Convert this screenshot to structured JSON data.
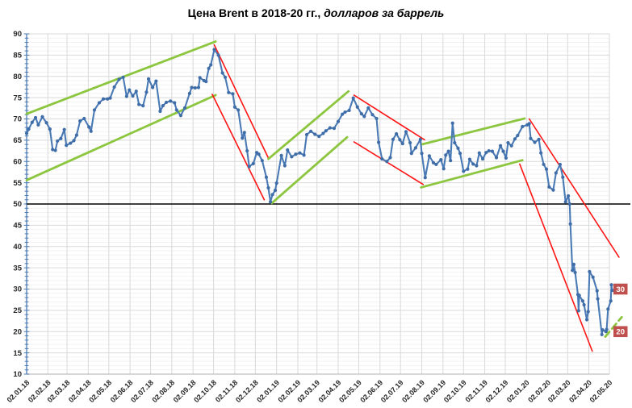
{
  "title": {
    "main": "Цена Brent в 2018-20 гг.,",
    "suffix": " долларов за баррель"
  },
  "chart_data": {
    "type": "line",
    "title": "Цена Brent в 2018-20 гг., долларов за баррель",
    "xlabel": "",
    "ylabel": "",
    "legend": "none",
    "grid": "on",
    "y_axis": {
      "min": 10,
      "max": 90,
      "step": 5,
      "minor_step": 1
    },
    "x_axis": {
      "tick_labels": [
        "02.01.18",
        "02.02.18",
        "02.03.18",
        "02.04.18",
        "02.05.18",
        "02.06.18",
        "02.07.18",
        "02.08.18",
        "02.09.18",
        "02.10.18",
        "02.11.18",
        "02.12.18",
        "02.01.19",
        "02.02.19",
        "02.03.19",
        "02.04.19",
        "02.05.19",
        "02.06.19",
        "02.07.19",
        "02.08.19",
        "02.09.19",
        "02.10.19",
        "02.11.19",
        "02.12.19",
        "02.01.20",
        "02.02.20",
        "02.03.20",
        "02.04.20",
        "02.05.20"
      ]
    },
    "reference_line": {
      "value": 50,
      "color": "#000000"
    },
    "colors": {
      "series": "#4a7ab5",
      "marker": "#3f6da8",
      "green": "#8cc63f",
      "red": "#ff1414",
      "grid_major": "#d9d9d9",
      "grid_minor": "#f2f2f2",
      "axis_x": "#bfbfbf",
      "axis_y": "#4a7ab5",
      "label_bg": "#c0504d",
      "label_fg": "#ffffff",
      "tick_text": "#262626"
    },
    "series": [
      {
        "name": "Brent, долларов за баррель",
        "points": [
          [
            "2018-01-02",
            66.6
          ],
          [
            "2018-01-05",
            67.6
          ],
          [
            "2018-01-10",
            69.2
          ],
          [
            "2018-01-15",
            70.3
          ],
          [
            "2018-01-19",
            68.6
          ],
          [
            "2018-01-25",
            70.5
          ],
          [
            "2018-01-31",
            69.1
          ],
          [
            "2018-02-05",
            67.6
          ],
          [
            "2018-02-09",
            62.8
          ],
          [
            "2018-02-13",
            62.6
          ],
          [
            "2018-02-16",
            64.8
          ],
          [
            "2018-02-21",
            65.4
          ],
          [
            "2018-02-26",
            67.5
          ],
          [
            "2018-03-01",
            63.8
          ],
          [
            "2018-03-07",
            64.3
          ],
          [
            "2018-03-12",
            64.9
          ],
          [
            "2018-03-16",
            66.2
          ],
          [
            "2018-03-21",
            69.5
          ],
          [
            "2018-03-27",
            70.1
          ],
          [
            "2018-04-03",
            68.1
          ],
          [
            "2018-04-06",
            67.1
          ],
          [
            "2018-04-11",
            72.1
          ],
          [
            "2018-04-18",
            73.8
          ],
          [
            "2018-04-24",
            74.7
          ],
          [
            "2018-04-30",
            74.7
          ],
          [
            "2018-05-04",
            74.9
          ],
          [
            "2018-05-10",
            77.5
          ],
          [
            "2018-05-17",
            79.3
          ],
          [
            "2018-05-23",
            79.8
          ],
          [
            "2018-05-28",
            75.3
          ],
          [
            "2018-06-01",
            76.8
          ],
          [
            "2018-06-06",
            75.4
          ],
          [
            "2018-06-11",
            76.5
          ],
          [
            "2018-06-15",
            73.4
          ],
          [
            "2018-06-21",
            73.1
          ],
          [
            "2018-06-26",
            76.3
          ],
          [
            "2018-06-29",
            79.4
          ],
          [
            "2018-07-05",
            77.4
          ],
          [
            "2018-07-10",
            78.9
          ],
          [
            "2018-07-16",
            71.8
          ],
          [
            "2018-07-20",
            73.1
          ],
          [
            "2018-07-25",
            73.9
          ],
          [
            "2018-07-31",
            74.2
          ],
          [
            "2018-08-06",
            73.8
          ],
          [
            "2018-08-09",
            72.1
          ],
          [
            "2018-08-15",
            70.8
          ],
          [
            "2018-08-21",
            72.6
          ],
          [
            "2018-08-28",
            76.0
          ],
          [
            "2018-08-31",
            77.4
          ],
          [
            "2018-09-05",
            77.3
          ],
          [
            "2018-09-10",
            77.4
          ],
          [
            "2018-09-12",
            79.7
          ],
          [
            "2018-09-18",
            79.0
          ],
          [
            "2018-09-21",
            78.8
          ],
          [
            "2018-09-25",
            81.9
          ],
          [
            "2018-09-28",
            82.7
          ],
          [
            "2018-10-03",
            86.3
          ],
          [
            "2018-10-09",
            85.0
          ],
          [
            "2018-10-15",
            80.8
          ],
          [
            "2018-10-19",
            79.8
          ],
          [
            "2018-10-24",
            76.2
          ],
          [
            "2018-10-30",
            75.9
          ],
          [
            "2018-11-02",
            72.8
          ],
          [
            "2018-11-07",
            72.1
          ],
          [
            "2018-11-13",
            65.5
          ],
          [
            "2018-11-16",
            66.8
          ],
          [
            "2018-11-20",
            62.5
          ],
          [
            "2018-11-23",
            58.8
          ],
          [
            "2018-11-29",
            59.5
          ],
          [
            "2018-12-04",
            62.1
          ],
          [
            "2018-12-07",
            61.7
          ],
          [
            "2018-12-12",
            60.2
          ],
          [
            "2018-12-18",
            56.3
          ],
          [
            "2018-12-21",
            53.8
          ],
          [
            "2018-12-24",
            50.5
          ],
          [
            "2018-12-27",
            52.2
          ],
          [
            "2018-12-31",
            53.2
          ],
          [
            "2019-01-02",
            54.9
          ],
          [
            "2019-01-09",
            61.4
          ],
          [
            "2019-01-14",
            59.0
          ],
          [
            "2019-01-18",
            62.7
          ],
          [
            "2019-01-24",
            61.1
          ],
          [
            "2019-01-30",
            61.7
          ],
          [
            "2019-02-05",
            62.0
          ],
          [
            "2019-02-11",
            61.5
          ],
          [
            "2019-02-15",
            66.3
          ],
          [
            "2019-02-21",
            67.1
          ],
          [
            "2019-02-27",
            66.4
          ],
          [
            "2019-03-05",
            65.9
          ],
          [
            "2019-03-11",
            66.6
          ],
          [
            "2019-03-15",
            67.2
          ],
          [
            "2019-03-21",
            67.9
          ],
          [
            "2019-03-27",
            67.8
          ],
          [
            "2019-04-02",
            69.4
          ],
          [
            "2019-04-08",
            71.1
          ],
          [
            "2019-04-12",
            71.6
          ],
          [
            "2019-04-18",
            72.0
          ],
          [
            "2019-04-24",
            74.9
          ],
          [
            "2019-04-30",
            72.8
          ],
          [
            "2019-05-06",
            71.2
          ],
          [
            "2019-05-10",
            70.6
          ],
          [
            "2019-05-16",
            72.6
          ],
          [
            "2019-05-22",
            71.0
          ],
          [
            "2019-05-28",
            70.1
          ],
          [
            "2019-05-31",
            64.5
          ],
          [
            "2019-06-05",
            60.6
          ],
          [
            "2019-06-12",
            60.0
          ],
          [
            "2019-06-17",
            60.9
          ],
          [
            "2019-06-21",
            65.2
          ],
          [
            "2019-06-26",
            66.5
          ],
          [
            "2019-07-01",
            65.1
          ],
          [
            "2019-07-05",
            64.2
          ],
          [
            "2019-07-10",
            67.0
          ],
          [
            "2019-07-16",
            64.4
          ],
          [
            "2019-07-18",
            61.9
          ],
          [
            "2019-07-24",
            63.2
          ],
          [
            "2019-07-31",
            65.2
          ],
          [
            "2019-08-02",
            61.9
          ],
          [
            "2019-08-07",
            56.2
          ],
          [
            "2019-08-13",
            61.3
          ],
          [
            "2019-08-19",
            59.7
          ],
          [
            "2019-08-23",
            59.3
          ],
          [
            "2019-08-30",
            60.4
          ],
          [
            "2019-09-03",
            58.3
          ],
          [
            "2019-09-06",
            61.5
          ],
          [
            "2019-09-10",
            62.4
          ],
          [
            "2019-09-13",
            60.2
          ],
          [
            "2019-09-16",
            69.0
          ],
          [
            "2019-09-19",
            64.4
          ],
          [
            "2019-09-24",
            63.1
          ],
          [
            "2019-09-27",
            61.9
          ],
          [
            "2019-10-02",
            57.7
          ],
          [
            "2019-10-08",
            58.2
          ],
          [
            "2019-10-11",
            60.5
          ],
          [
            "2019-10-16",
            59.4
          ],
          [
            "2019-10-21",
            59.0
          ],
          [
            "2019-10-25",
            62.0
          ],
          [
            "2019-10-30",
            60.6
          ],
          [
            "2019-11-04",
            62.1
          ],
          [
            "2019-11-08",
            62.5
          ],
          [
            "2019-11-13",
            62.4
          ],
          [
            "2019-11-19",
            60.9
          ],
          [
            "2019-11-25",
            63.7
          ],
          [
            "2019-11-29",
            62.4
          ],
          [
            "2019-12-03",
            60.8
          ],
          [
            "2019-12-06",
            64.4
          ],
          [
            "2019-12-11",
            63.7
          ],
          [
            "2019-12-16",
            65.3
          ],
          [
            "2019-12-20",
            66.1
          ],
          [
            "2019-12-27",
            68.2
          ],
          [
            "2020-01-03",
            68.6
          ],
          [
            "2020-01-06",
            68.9
          ],
          [
            "2020-01-08",
            65.4
          ],
          [
            "2020-01-14",
            64.5
          ],
          [
            "2020-01-20",
            65.2
          ],
          [
            "2020-01-23",
            62.0
          ],
          [
            "2020-01-27",
            59.3
          ],
          [
            "2020-01-31",
            58.2
          ],
          [
            "2020-02-04",
            54.0
          ],
          [
            "2020-02-10",
            53.3
          ],
          [
            "2020-02-14",
            57.3
          ],
          [
            "2020-02-20",
            59.3
          ],
          [
            "2020-02-24",
            56.3
          ],
          [
            "2020-02-28",
            50.5
          ],
          [
            "2020-03-03",
            51.9
          ],
          [
            "2020-03-05",
            50.0
          ],
          [
            "2020-03-06",
            45.3
          ],
          [
            "2020-03-09",
            34.4
          ],
          [
            "2020-03-11",
            35.8
          ],
          [
            "2020-03-13",
            33.9
          ],
          [
            "2020-03-17",
            28.7
          ],
          [
            "2020-03-18",
            24.9
          ],
          [
            "2020-03-19",
            28.5
          ],
          [
            "2020-03-24",
            27.2
          ],
          [
            "2020-03-26",
            26.3
          ],
          [
            "2020-03-30",
            22.8
          ],
          [
            "2020-04-01",
            24.7
          ],
          [
            "2020-04-03",
            34.1
          ],
          [
            "2020-04-08",
            32.8
          ],
          [
            "2020-04-14",
            29.6
          ],
          [
            "2020-04-15",
            27.7
          ],
          [
            "2020-04-21",
            19.3
          ],
          [
            "2020-04-22",
            20.4
          ],
          [
            "2020-04-27",
            20.0
          ],
          [
            "2020-04-28",
            20.5
          ],
          [
            "2020-04-30",
            25.3
          ],
          [
            "2020-05-04",
            27.2
          ],
          [
            "2020-05-05",
            31.0
          ],
          [
            "2020-05-06",
            29.7
          ]
        ]
      }
    ],
    "trend_lines": [
      {
        "color": "green",
        "style": "solid",
        "from": [
          "2018-01-02",
          71.2
        ],
        "to": [
          "2018-10-05",
          88.2
        ]
      },
      {
        "color": "green",
        "style": "solid",
        "from": [
          "2018-01-02",
          55.6
        ],
        "to": [
          "2018-10-05",
          75.6
        ]
      },
      {
        "color": "red",
        "style": "solid",
        "from": [
          "2018-10-03",
          87.4
        ],
        "to": [
          "2018-12-21",
          60.8
        ]
      },
      {
        "color": "red",
        "style": "solid",
        "from": [
          "2018-09-30",
          75.8
        ],
        "to": [
          "2018-12-15",
          51.0
        ]
      },
      {
        "color": "green",
        "style": "solid",
        "from": [
          "2018-12-21",
          60.6
        ],
        "to": [
          "2019-04-17",
          76.5
        ]
      },
      {
        "color": "green",
        "style": "solid",
        "from": [
          "2018-12-26",
          50.2
        ],
        "to": [
          "2019-04-15",
          65.7
        ]
      },
      {
        "color": "red",
        "style": "solid",
        "from": [
          "2019-04-25",
          75.6
        ],
        "to": [
          "2019-08-06",
          65.1
        ]
      },
      {
        "color": "red",
        "style": "solid",
        "from": [
          "2019-04-25",
          64.6
        ],
        "to": [
          "2019-08-04",
          54.6
        ]
      },
      {
        "color": "green",
        "style": "solid",
        "from": [
          "2019-08-02",
          64.0
        ],
        "to": [
          "2019-12-30",
          70.1
        ]
      },
      {
        "color": "green",
        "style": "solid",
        "from": [
          "2019-08-01",
          53.9
        ],
        "to": [
          "2019-12-27",
          60.3
        ]
      },
      {
        "color": "red",
        "style": "solid",
        "from": [
          "2020-01-06",
          70.0
        ],
        "to": [
          "2020-05-16",
          37.5
        ]
      },
      {
        "color": "red",
        "style": "solid",
        "from": [
          "2019-12-23",
          59.4
        ],
        "to": [
          "2020-04-07",
          15.4
        ]
      },
      {
        "color": "green",
        "style": "dashed",
        "from": [
          "2020-04-26",
          18.8
        ],
        "to": [
          "2020-05-20",
          23.4
        ]
      }
    ],
    "annotations": [
      {
        "text": "30",
        "value": 30
      },
      {
        "text": "20",
        "value": 20
      }
    ]
  }
}
